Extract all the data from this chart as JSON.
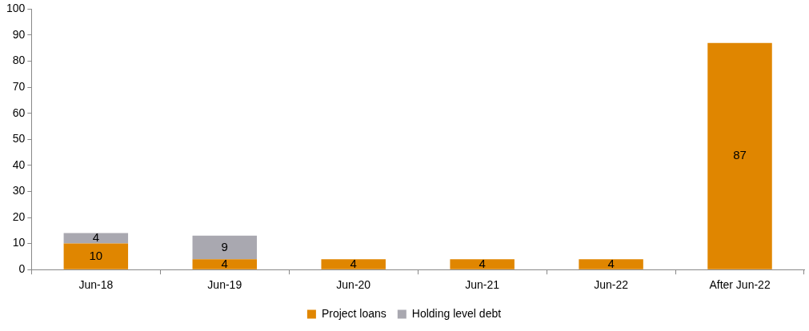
{
  "chart_data": {
    "type": "bar",
    "categories": [
      "Jun-18",
      "Jun-19",
      "Jun-20",
      "Jun-21",
      "Jun-22",
      "After Jun-22"
    ],
    "series": [
      {
        "name": "Project loans",
        "color": "#e08600",
        "values": [
          10,
          4,
          4,
          4,
          4,
          87
        ]
      },
      {
        "name": "Holding level debt",
        "color": "#a9a8b0",
        "values": [
          4,
          9,
          null,
          null,
          null,
          null
        ]
      }
    ],
    "stacked": true,
    "ylim": [
      0,
      100
    ],
    "yticks": [
      0,
      10,
      20,
      30,
      40,
      50,
      60,
      70,
      80,
      90,
      100
    ],
    "data_labels": true,
    "legend": "bottom"
  }
}
